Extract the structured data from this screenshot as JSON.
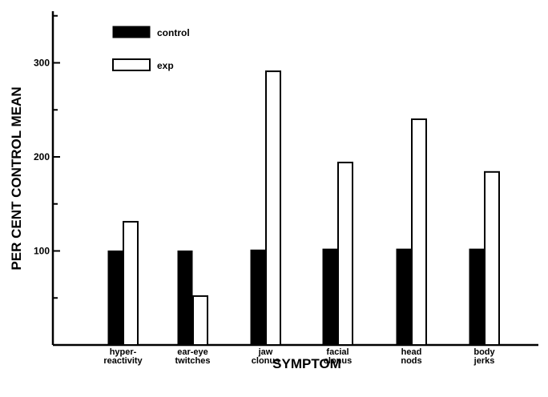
{
  "chart_data": {
    "type": "bar",
    "xlabel": "SYMPTOM",
    "ylabel": "PER CENT CONTROL MEAN",
    "ylim": [
      0,
      350
    ],
    "yticks": [
      100,
      200,
      300
    ],
    "categories": [
      [
        "hyper-",
        "reactivity"
      ],
      [
        "ear-eye",
        "twitches"
      ],
      [
        "jaw",
        "clonus"
      ],
      [
        "facial",
        "clonus"
      ],
      [
        "head",
        "nods"
      ],
      [
        "body",
        "jerks"
      ]
    ],
    "series": [
      {
        "name": "control",
        "color": "#000000",
        "fill": "solid",
        "values": [
          100,
          100,
          101,
          102,
          102,
          102
        ]
      },
      {
        "name": "exp",
        "color": "#ffffff",
        "fill": "outline",
        "values": [
          131,
          52,
          291,
          194,
          240,
          184
        ]
      }
    ],
    "legend_position": "top-left",
    "grid": false
  }
}
